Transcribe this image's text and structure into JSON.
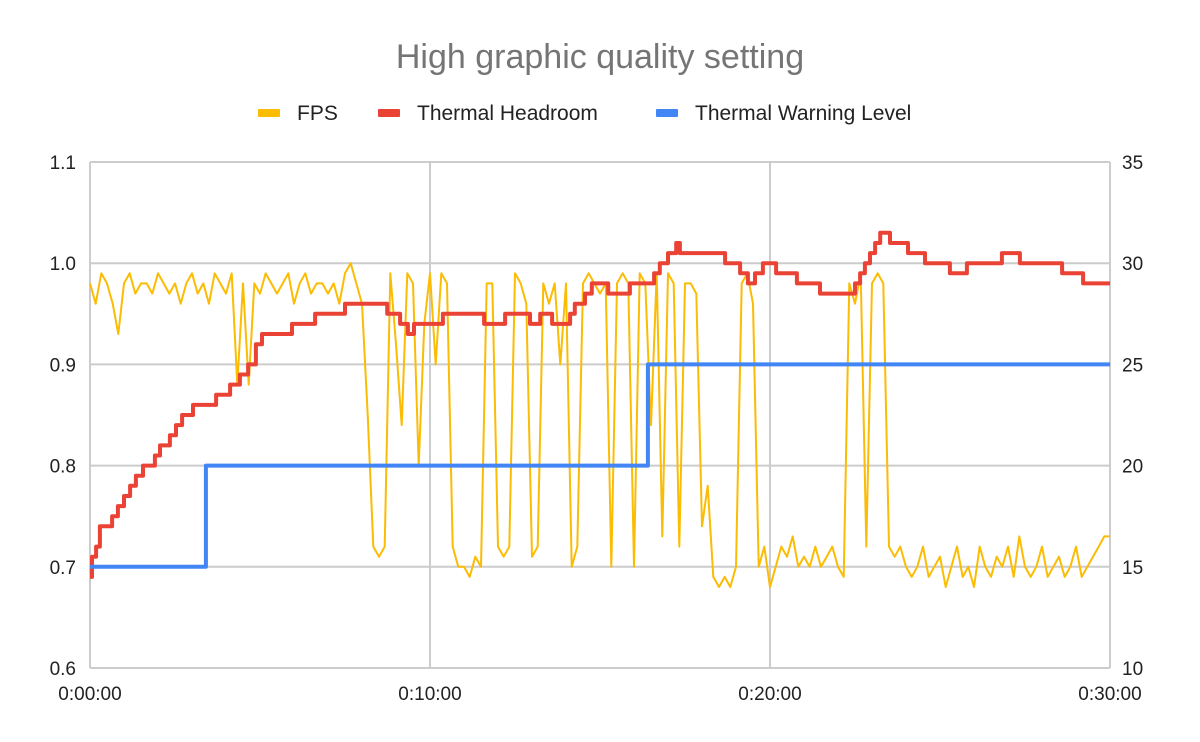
{
  "chart_data": {
    "type": "line",
    "title": "High graphic quality setting",
    "legend_position": "top",
    "grid": true,
    "x_ticks": [
      "0:00:00",
      "0:10:00",
      "0:20:00",
      "0:30:00"
    ],
    "xlim_minutes": [
      0,
      30
    ],
    "y_left": {
      "ticks": [
        "0.6",
        "0.7",
        "0.8",
        "0.9",
        "1.0",
        "1.1"
      ],
      "lim": [
        0.6,
        1.1
      ]
    },
    "y_right": {
      "ticks": [
        "10",
        "15",
        "20",
        "25",
        "30",
        "35"
      ],
      "lim": [
        10,
        35
      ]
    },
    "series": [
      {
        "name": "FPS",
        "color": "#fbbc04",
        "axis": "right",
        "sample_interval_seconds": 10,
        "values": [
          29,
          28,
          29.5,
          29,
          28,
          26.5,
          29,
          29.5,
          28.5,
          29,
          29,
          28.5,
          29.5,
          29,
          28.5,
          29,
          28,
          29,
          29.5,
          28.5,
          29,
          28,
          29.5,
          29,
          28.5,
          29.5,
          24,
          29,
          24,
          29,
          28.5,
          29.5,
          29,
          28.5,
          29,
          29.5,
          28,
          29,
          29.5,
          28.5,
          29,
          29,
          28.5,
          29,
          28,
          29.5,
          30,
          29,
          28,
          22.5,
          16,
          15.5,
          16,
          29.5,
          26,
          22,
          29.5,
          29,
          20,
          27,
          29.5,
          25,
          29.5,
          29,
          16,
          15,
          15,
          14.5,
          15.5,
          15,
          29,
          29,
          16,
          15.5,
          16,
          29.5,
          29,
          28,
          15.5,
          16,
          29,
          28,
          29,
          25,
          29,
          15,
          16,
          29,
          29.5,
          29,
          28.5,
          29,
          15,
          29,
          29.5,
          29,
          15,
          29.5,
          29,
          22,
          29.5,
          16.5,
          29.5,
          29,
          16,
          29,
          29,
          28.5,
          17,
          19,
          14.5,
          14,
          14.5,
          14,
          15,
          29,
          29.5,
          28,
          15,
          16,
          14,
          15,
          16,
          15.5,
          16.5,
          15,
          15.5,
          15,
          16,
          15,
          15.5,
          16,
          15,
          14.5,
          29,
          28,
          29.5,
          16,
          29,
          29.5,
          29,
          16,
          15.5,
          16,
          15,
          14.5,
          15,
          16,
          14.5,
          15,
          15.5,
          14,
          15,
          16,
          14.5,
          15,
          14,
          16,
          15,
          14.5,
          15.5,
          15,
          16,
          14.5,
          16.5,
          15,
          14.5,
          15,
          16,
          14.5,
          15,
          15.5,
          14.5,
          15,
          16,
          14.5,
          15,
          15.5,
          16,
          16.5,
          16.5
        ]
      },
      {
        "name": "Thermal Headroom",
        "color": "#ea4335",
        "axis": "left",
        "step": true,
        "points_minutes": [
          [
            0,
            0.69
          ],
          [
            0.06,
            0.71
          ],
          [
            0.18,
            0.72
          ],
          [
            0.29,
            0.74
          ],
          [
            0.65,
            0.75
          ],
          [
            0.82,
            0.76
          ],
          [
            1.0,
            0.77
          ],
          [
            1.18,
            0.78
          ],
          [
            1.35,
            0.79
          ],
          [
            1.56,
            0.8
          ],
          [
            1.91,
            0.81
          ],
          [
            2.06,
            0.82
          ],
          [
            2.35,
            0.83
          ],
          [
            2.53,
            0.84
          ],
          [
            2.71,
            0.85
          ],
          [
            3.03,
            0.86
          ],
          [
            3.71,
            0.87
          ],
          [
            4.12,
            0.88
          ],
          [
            4.41,
            0.89
          ],
          [
            4.65,
            0.9
          ],
          [
            4.88,
            0.92
          ],
          [
            5.06,
            0.93
          ],
          [
            5.94,
            0.94
          ],
          [
            6.62,
            0.95
          ],
          [
            7.5,
            0.96
          ],
          [
            8.74,
            0.95
          ],
          [
            9.12,
            0.94
          ],
          [
            9.35,
            0.93
          ],
          [
            9.53,
            0.94
          ],
          [
            10.38,
            0.95
          ],
          [
            11.59,
            0.94
          ],
          [
            12.21,
            0.95
          ],
          [
            12.94,
            0.94
          ],
          [
            13.24,
            0.95
          ],
          [
            13.59,
            0.94
          ],
          [
            14.12,
            0.95
          ],
          [
            14.26,
            0.96
          ],
          [
            14.56,
            0.97
          ],
          [
            14.76,
            0.98
          ],
          [
            15.24,
            0.97
          ],
          [
            15.88,
            0.98
          ],
          [
            16.59,
            0.99
          ],
          [
            16.76,
            1.0
          ],
          [
            17.0,
            1.01
          ],
          [
            17.24,
            1.02
          ],
          [
            17.35,
            1.01
          ],
          [
            18.68,
            1.0
          ],
          [
            19.12,
            0.99
          ],
          [
            19.35,
            0.98
          ],
          [
            19.56,
            0.99
          ],
          [
            19.79,
            1.0
          ],
          [
            20.18,
            0.99
          ],
          [
            20.79,
            0.98
          ],
          [
            21.47,
            0.97
          ],
          [
            22.5,
            0.98
          ],
          [
            22.65,
            0.99
          ],
          [
            22.79,
            1.0
          ],
          [
            22.94,
            1.01
          ],
          [
            23.09,
            1.02
          ],
          [
            23.24,
            1.03
          ],
          [
            23.53,
            1.02
          ],
          [
            24.06,
            1.01
          ],
          [
            24.56,
            1.0
          ],
          [
            25.29,
            0.99
          ],
          [
            25.79,
            1.0
          ],
          [
            26.82,
            1.01
          ],
          [
            27.35,
            1.0
          ],
          [
            28.59,
            0.99
          ],
          [
            29.21,
            0.98
          ],
          [
            30,
            0.98
          ]
        ]
      },
      {
        "name": "Thermal Warning Level",
        "color": "#4285f4",
        "axis": "left",
        "step": true,
        "points_minutes": [
          [
            0,
            0.7
          ],
          [
            3.41,
            0.8
          ],
          [
            16.41,
            0.9
          ],
          [
            30,
            0.9
          ]
        ]
      }
    ]
  }
}
